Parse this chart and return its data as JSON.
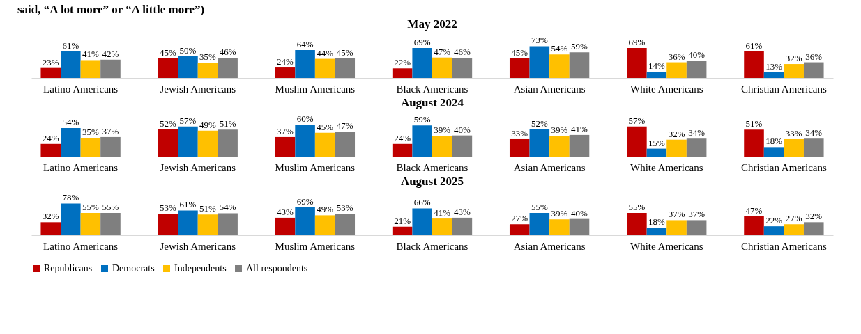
{
  "chart_data": [
    {
      "type": "bar",
      "title": "May 2022",
      "annotations": [
        "said, “A lot more” or “A little more”)"
      ],
      "categories": [
        "Latino Americans",
        "Jewish Americans",
        "Muslim Americans",
        "Black Americans",
        "Asian Americans",
        "White Americans",
        "Christian Americans"
      ],
      "series": [
        {
          "name": "Republicans",
          "color": "#c00000",
          "values": [
            23,
            45,
            24,
            22,
            45,
            69,
            61
          ],
          "value_labels": [
            "23%",
            "45%",
            "24%",
            "22%",
            "45%",
            "69%",
            "61%"
          ]
        },
        {
          "name": "Democrats",
          "color": "#0070c0",
          "values": [
            61,
            50,
            64,
            69,
            73,
            14,
            13
          ],
          "value_labels": [
            "61%",
            "50%",
            "64%",
            "69%",
            "73%",
            "14%",
            "13%"
          ]
        },
        {
          "name": "Independents",
          "color": "#ffc000",
          "values": [
            41,
            35,
            44,
            47,
            54,
            36,
            32
          ],
          "value_labels": [
            "41%",
            "35%",
            "44%",
            "47%",
            "54%",
            "36%",
            "32%"
          ]
        },
        {
          "name": "All respondents",
          "color": "#7f7f7f",
          "values": [
            42,
            46,
            45,
            46,
            59,
            40,
            36
          ],
          "value_labels": [
            "42%",
            "46%",
            "45%",
            "46%",
            "59%",
            "40%",
            "36%"
          ]
        }
      ],
      "legend": "bottom",
      "grid": false
    },
    {
      "type": "bar",
      "title": "August 2024",
      "categories": [
        "Latino Americans",
        "Jewish Americans",
        "Muslim Americans",
        "Black Americans",
        "Asian Americans",
        "White Americans",
        "Christian Americans"
      ],
      "series": [
        {
          "name": "Republicans",
          "color": "#c00000",
          "values": [
            24,
            52,
            37,
            24,
            33,
            57,
            51
          ],
          "value_labels": [
            "24%",
            "52%",
            "37%",
            "24%",
            "33%",
            "57%",
            "51%"
          ]
        },
        {
          "name": "Democrats",
          "color": "#0070c0",
          "values": [
            54,
            57,
            60,
            59,
            52,
            15,
            18
          ],
          "value_labels": [
            "54%",
            "57%",
            "60%",
            "59%",
            "52%",
            "15%",
            "18%"
          ]
        },
        {
          "name": "Independents",
          "color": "#ffc000",
          "values": [
            35,
            49,
            45,
            39,
            39,
            32,
            33
          ],
          "value_labels": [
            "35%",
            "49%",
            "45%",
            "39%",
            "39%",
            "32%",
            "33%"
          ]
        },
        {
          "name": "All respondents",
          "color": "#7f7f7f",
          "values": [
            37,
            51,
            47,
            40,
            41,
            34,
            34
          ],
          "value_labels": [
            "37%",
            "51%",
            "47%",
            "40%",
            "41%",
            "34%",
            "34%"
          ]
        }
      ],
      "legend": "bottom",
      "grid": false
    },
    {
      "type": "bar",
      "title": "August 2025",
      "categories": [
        "Latino Americans",
        "Jewish Americans",
        "Muslim Americans",
        "Black Americans",
        "Asian Americans",
        "White Americans",
        "Christian Americans"
      ],
      "series": [
        {
          "name": "Republicans",
          "color": "#c00000",
          "values": [
            32,
            53,
            43,
            21,
            27,
            55,
            47
          ],
          "value_labels": [
            "32%",
            "53%",
            "43%",
            "21%",
            "27%",
            "55%",
            "47%"
          ]
        },
        {
          "name": "Democrats",
          "color": "#0070c0",
          "values": [
            78,
            61,
            69,
            66,
            55,
            18,
            22
          ],
          "value_labels": [
            "78%",
            "61%",
            "69%",
            "66%",
            "55%",
            "18%",
            "22%"
          ]
        },
        {
          "name": "Independents",
          "color": "#ffc000",
          "values": [
            55,
            51,
            49,
            41,
            39,
            37,
            27
          ],
          "value_labels": [
            "55%",
            "51%",
            "49%",
            "41%",
            "39%",
            "37%",
            "27%"
          ]
        },
        {
          "name": "All respondents",
          "color": "#7f7f7f",
          "values": [
            55,
            54,
            53,
            43,
            40,
            37,
            32
          ],
          "value_labels": [
            "55%",
            "54%",
            "53%",
            "43%",
            "40%",
            "37%",
            "32%"
          ]
        }
      ],
      "legend": "bottom",
      "grid": false
    }
  ]
}
